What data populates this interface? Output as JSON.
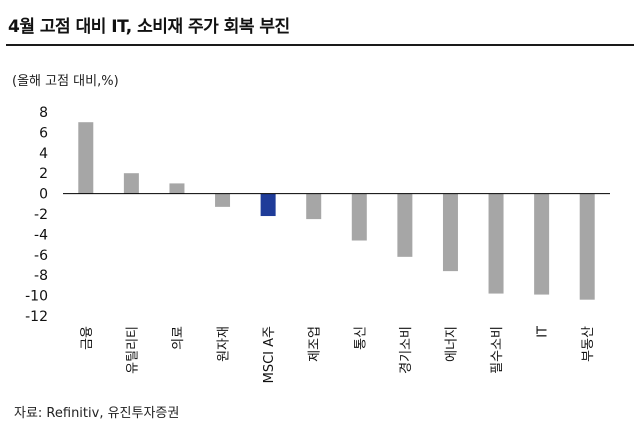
{
  "header": {
    "title": "4월 고점 대비 IT, 소비재 주가 회복 부진",
    "unit": "(올해 고점 대비,%)"
  },
  "footer": {
    "source": "자료: Refinitiv, 유진투자증권"
  },
  "colors": {
    "bar_default": "#a6a6a6",
    "bar_highlight": "#1f3c99",
    "axis": "#000000"
  },
  "chart_data": {
    "type": "bar",
    "title": "4월 고점 대비 IT, 소비재 주가 회복 부진",
    "ylabel": "(올해 고점 대비,%)",
    "categories": [
      "금융",
      "유틸리티",
      "의료",
      "원자재",
      "MSCI A주",
      "제조업",
      "통신",
      "경기소비",
      "에너지",
      "필수소비",
      "IT",
      "부동산"
    ],
    "values": [
      7.0,
      2.0,
      1.0,
      -1.3,
      -2.2,
      -2.5,
      -4.6,
      -6.2,
      -7.6,
      -9.8,
      -9.9,
      -10.4
    ],
    "highlight": "MSCI A주",
    "ylim": [
      -12,
      8
    ],
    "yticks": [
      8,
      6,
      4,
      2,
      0,
      -2,
      -4,
      -6,
      -8,
      -10,
      -12
    ],
    "grid": false
  }
}
